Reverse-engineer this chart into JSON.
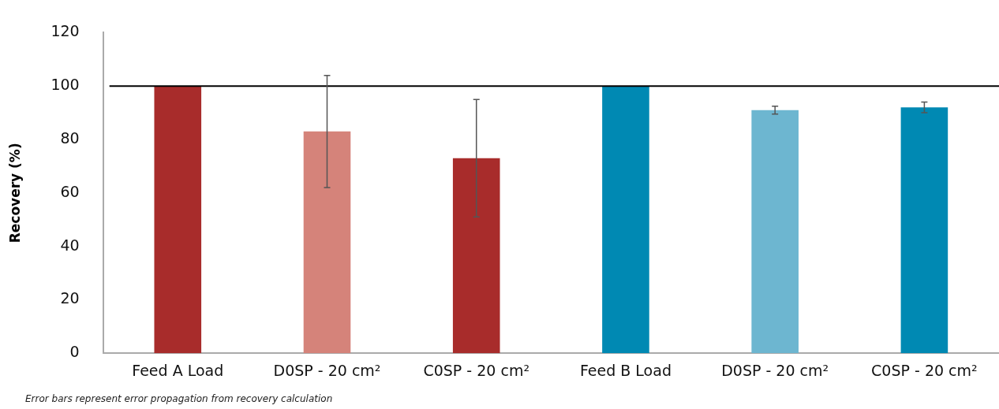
{
  "chart_data": {
    "type": "bar",
    "ylabel": "Recovery (%)",
    "categories": [
      "Feed A Load",
      "D0SP - 20 cm²",
      "C0SP - 20 cm²",
      "Feed B Load",
      "D0SP - 20 cm²",
      "C0SP - 20 cm²"
    ],
    "values": [
      100,
      83,
      73,
      100,
      91,
      92
    ],
    "colors": [
      "#a82c2b",
      "#d5837a",
      "#a82c2b",
      "#0089b3",
      "#6db6d0",
      "#0089b3"
    ],
    "errors": [
      null,
      21,
      22,
      null,
      1.5,
      2
    ],
    "ylim": [
      0,
      120
    ],
    "yticks": [
      0,
      20,
      40,
      60,
      80,
      100,
      120
    ],
    "grid": false,
    "legend": false,
    "ref_lines": [
      {
        "axis": "y",
        "value": 100,
        "color": "#000000"
      }
    ],
    "annotations": [
      "Error bars represent error propagation from recovery calculation"
    ]
  }
}
